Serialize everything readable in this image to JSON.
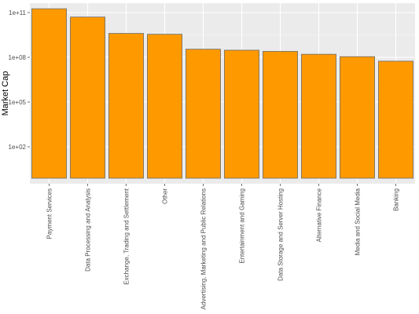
{
  "chart_data": {
    "type": "bar",
    "ylabel": "Market Cap",
    "xlabel": "",
    "y_scale": "log10",
    "ylim": [
      1,
      1000000000000
    ],
    "y_ticks": [
      100,
      100000,
      100000000,
      100000000000
    ],
    "y_tick_labels": [
      "1e+02",
      "1e+05",
      "1e+08",
      "1e+11"
    ],
    "categories": [
      "Payment Services",
      "Data Processing and Analysis",
      "Exchange, Trading and Settlement",
      "Other",
      "Advertising, Marketing and Public Relations",
      "Entertainment and Gaming",
      "Data Storage and Server Hosting",
      "Alternative Finance",
      "Media and Social Media",
      "Banking"
    ],
    "values": [
      180000000000,
      50000000000,
      4000000000,
      3500000000,
      350000000,
      300000000,
      250000000,
      160000000,
      110000000,
      55000000
    ],
    "bar_color": "#ff9900",
    "bar_outline": "#6b6b6b",
    "panel_background": "#ebebeb",
    "grid": true
  }
}
